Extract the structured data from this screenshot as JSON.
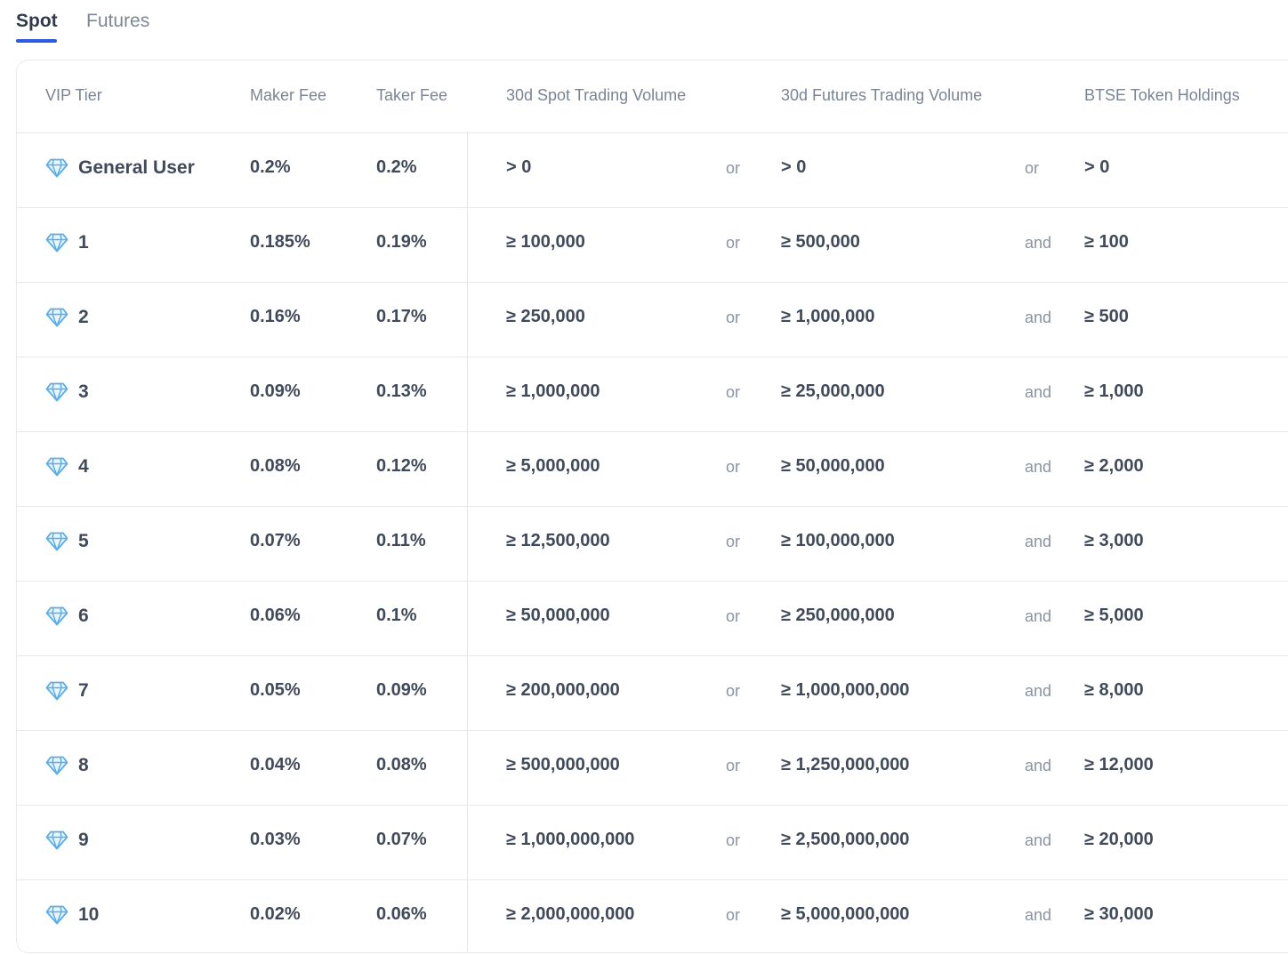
{
  "tabs": {
    "spot": "Spot",
    "futures": "Futures"
  },
  "table": {
    "headers": {
      "vip_tier": "VIP Tier",
      "maker_fee": "Maker Fee",
      "taker_fee": "Taker Fee",
      "spot_volume": "30d Spot Trading Volume",
      "futures_volume": "30d Futures Trading Volume",
      "token_holdings": "BTSE Token Holdings"
    },
    "rows": [
      {
        "tier": "General User",
        "maker": "0.2%",
        "taker": "0.2%",
        "spot": "> 0",
        "conj1": "or",
        "futures": "> 0",
        "conj2": "or",
        "holdings": "> 0"
      },
      {
        "tier": "1",
        "maker": "0.185%",
        "taker": "0.19%",
        "spot": "≥ 100,000",
        "conj1": "or",
        "futures": "≥ 500,000",
        "conj2": "and",
        "holdings": "≥ 100"
      },
      {
        "tier": "2",
        "maker": "0.16%",
        "taker": "0.17%",
        "spot": "≥ 250,000",
        "conj1": "or",
        "futures": "≥ 1,000,000",
        "conj2": "and",
        "holdings": "≥ 500"
      },
      {
        "tier": "3",
        "maker": "0.09%",
        "taker": "0.13%",
        "spot": "≥ 1,000,000",
        "conj1": "or",
        "futures": "≥ 25,000,000",
        "conj2": "and",
        "holdings": "≥ 1,000"
      },
      {
        "tier": "4",
        "maker": "0.08%",
        "taker": "0.12%",
        "spot": "≥ 5,000,000",
        "conj1": "or",
        "futures": "≥ 50,000,000",
        "conj2": "and",
        "holdings": "≥ 2,000"
      },
      {
        "tier": "5",
        "maker": "0.07%",
        "taker": "0.11%",
        "spot": "≥ 12,500,000",
        "conj1": "or",
        "futures": "≥ 100,000,000",
        "conj2": "and",
        "holdings": "≥ 3,000"
      },
      {
        "tier": "6",
        "maker": "0.06%",
        "taker": "0.1%",
        "spot": "≥ 50,000,000",
        "conj1": "or",
        "futures": "≥ 250,000,000",
        "conj2": "and",
        "holdings": "≥ 5,000"
      },
      {
        "tier": "7",
        "maker": "0.05%",
        "taker": "0.09%",
        "spot": "≥ 200,000,000",
        "conj1": "or",
        "futures": "≥ 1,000,000,000",
        "conj2": "and",
        "holdings": "≥ 8,000"
      },
      {
        "tier": "8",
        "maker": "0.04%",
        "taker": "0.08%",
        "spot": "≥ 500,000,000",
        "conj1": "or",
        "futures": "≥ 1,250,000,000",
        "conj2": "and",
        "holdings": "≥ 12,000"
      },
      {
        "tier": "9",
        "maker": "0.03%",
        "taker": "0.07%",
        "spot": "≥ 1,000,000,000",
        "conj1": "or",
        "futures": "≥ 2,500,000,000",
        "conj2": "and",
        "holdings": "≥ 20,000"
      },
      {
        "tier": "10",
        "maker": "0.02%",
        "taker": "0.06%",
        "spot": "≥ 2,000,000,000",
        "conj1": "or",
        "futures": "≥ 5,000,000,000",
        "conj2": "and",
        "holdings": "≥ 30,000"
      }
    ]
  },
  "icons": {
    "tier_icon": "diamond-icon"
  },
  "colors": {
    "accent": "#2d5ae0",
    "diamond": "#5aaee8"
  }
}
